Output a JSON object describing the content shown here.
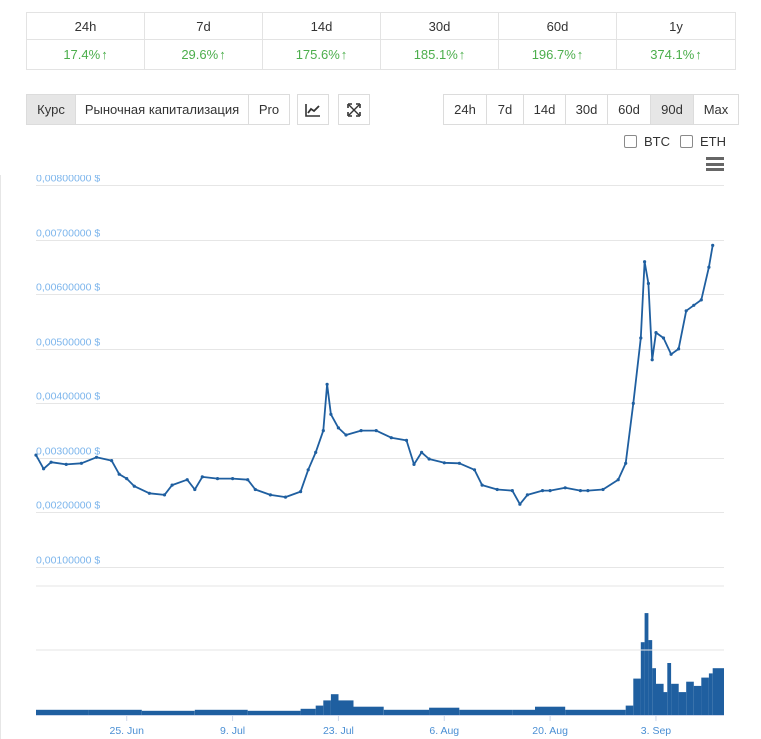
{
  "performance": [
    {
      "period": "24h",
      "change": "17.4%"
    },
    {
      "period": "7d",
      "change": "29.6%"
    },
    {
      "period": "14d",
      "change": "175.6%"
    },
    {
      "period": "30d",
      "change": "185.1%"
    },
    {
      "period": "60d",
      "change": "196.7%"
    },
    {
      "period": "1y",
      "change": "374.1%"
    }
  ],
  "toolbar": {
    "views": [
      "Курс",
      "Рыночная капитализация",
      "Pro"
    ],
    "active_view": "Курс",
    "ranges": [
      "24h",
      "7d",
      "14d",
      "30d",
      "60d",
      "90d",
      "Max"
    ],
    "active_range": "90d",
    "compare": [
      "BTC",
      "ETH"
    ],
    "chart_type_icon": "line-chart-icon",
    "fullscreen_icon": "expand-icon",
    "menu_icon": "hamburger-menu-icon"
  },
  "colors": {
    "price_line": "#1f5fa0",
    "volume": "#1f5fa0",
    "gain": "#4cae4c",
    "axis_text": "#7cb5ec"
  },
  "chart_data": {
    "type": "line",
    "y_tick_labels": [
      "0,00100000 $",
      "0,00200000 $",
      "0,00300000 $",
      "0,00400000 $",
      "0,00500000 $",
      "0,00600000 $",
      "0,00700000 $",
      "0,00800000 $"
    ],
    "y_ticks": [
      0.001,
      0.002,
      0.003,
      0.004,
      0.005,
      0.006,
      0.007,
      0.008
    ],
    "ylim": [
      0.00085,
      0.0081
    ],
    "x_tick_labels": [
      "25. Jun",
      "9. Jul",
      "23. Jul",
      "6. Aug",
      "20. Aug",
      "3. Sep"
    ],
    "x_tick_dates": [
      "2018-06-25",
      "2018-07-09",
      "2018-07-23",
      "2018-08-06",
      "2018-08-20",
      "2018-09-03"
    ],
    "x_range": [
      "2018-06-13",
      "2018-09-12"
    ],
    "grid": true,
    "series": [
      {
        "values": [
          [
            "2018-06-13",
            0.00305
          ],
          [
            "2018-06-14",
            0.0028
          ],
          [
            "2018-06-15",
            0.00292
          ],
          [
            "2018-06-17",
            0.00288
          ],
          [
            "2018-06-19",
            0.0029
          ],
          [
            "2018-06-21",
            0.00301
          ],
          [
            "2018-06-23",
            0.00295
          ],
          [
            "2018-06-24",
            0.0027
          ],
          [
            "2018-06-25",
            0.00262
          ],
          [
            "2018-06-26",
            0.00248
          ],
          [
            "2018-06-28",
            0.00235
          ],
          [
            "2018-06-30",
            0.00232
          ],
          [
            "2018-07-01",
            0.0025
          ],
          [
            "2018-07-03",
            0.0026
          ],
          [
            "2018-07-04",
            0.00242
          ],
          [
            "2018-07-05",
            0.00265
          ],
          [
            "2018-07-07",
            0.00262
          ],
          [
            "2018-07-09",
            0.00262
          ],
          [
            "2018-07-11",
            0.0026
          ],
          [
            "2018-07-12",
            0.00242
          ],
          [
            "2018-07-14",
            0.00232
          ],
          [
            "2018-07-16",
            0.00228
          ],
          [
            "2018-07-18",
            0.00238
          ],
          [
            "2018-07-19",
            0.00278
          ],
          [
            "2018-07-20",
            0.0031
          ],
          [
            "2018-07-21",
            0.0035
          ],
          [
            "2018-07-21T12:00",
            0.00435
          ],
          [
            "2018-07-22",
            0.0038
          ],
          [
            "2018-07-23",
            0.00355
          ],
          [
            "2018-07-24",
            0.00342
          ],
          [
            "2018-07-26",
            0.0035
          ],
          [
            "2018-07-28",
            0.0035
          ],
          [
            "2018-07-30",
            0.00337
          ],
          [
            "2018-08-01",
            0.00332
          ],
          [
            "2018-08-02",
            0.00288
          ],
          [
            "2018-08-03",
            0.0031
          ],
          [
            "2018-08-04",
            0.00298
          ],
          [
            "2018-08-06",
            0.00291
          ],
          [
            "2018-08-08",
            0.0029
          ],
          [
            "2018-08-10",
            0.00278
          ],
          [
            "2018-08-11",
            0.0025
          ],
          [
            "2018-08-13",
            0.00242
          ],
          [
            "2018-08-15",
            0.0024
          ],
          [
            "2018-08-16",
            0.00215
          ],
          [
            "2018-08-17",
            0.00232
          ],
          [
            "2018-08-19",
            0.0024
          ],
          [
            "2018-08-20",
            0.0024
          ],
          [
            "2018-08-22",
            0.00245
          ],
          [
            "2018-08-24",
            0.0024
          ],
          [
            "2018-08-25",
            0.0024
          ],
          [
            "2018-08-27",
            0.00242
          ],
          [
            "2018-08-29",
            0.0026
          ],
          [
            "2018-08-30",
            0.0029
          ],
          [
            "2018-08-31",
            0.004
          ],
          [
            "2018-09-01",
            0.0052
          ],
          [
            "2018-09-01T12:00",
            0.0066
          ],
          [
            "2018-09-02",
            0.0062
          ],
          [
            "2018-09-02T12:00",
            0.0048
          ],
          [
            "2018-09-03",
            0.0053
          ],
          [
            "2018-09-04",
            0.0052
          ],
          [
            "2018-09-05",
            0.0049
          ],
          [
            "2018-09-06",
            0.005
          ],
          [
            "2018-09-07",
            0.0057
          ],
          [
            "2018-09-08",
            0.0058
          ],
          [
            "2018-09-09",
            0.0059
          ],
          [
            "2018-09-10",
            0.0065
          ],
          [
            "2018-09-10T12:00",
            0.0069
          ]
        ]
      }
    ],
    "volume_series": {
      "values": [
        [
          "2018-06-13",
          0.05
        ],
        [
          "2018-06-20",
          0.05
        ],
        [
          "2018-06-27",
          0.04
        ],
        [
          "2018-07-04",
          0.05
        ],
        [
          "2018-07-11",
          0.04
        ],
        [
          "2018-07-18",
          0.06
        ],
        [
          "2018-07-20",
          0.09
        ],
        [
          "2018-07-21",
          0.14
        ],
        [
          "2018-07-22",
          0.2
        ],
        [
          "2018-07-23",
          0.14
        ],
        [
          "2018-07-25",
          0.08
        ],
        [
          "2018-07-29",
          0.05
        ],
        [
          "2018-08-04",
          0.07
        ],
        [
          "2018-08-08",
          0.05
        ],
        [
          "2018-08-15",
          0.05
        ],
        [
          "2018-08-18",
          0.08
        ],
        [
          "2018-08-22",
          0.05
        ],
        [
          "2018-08-27",
          0.05
        ],
        [
          "2018-08-30",
          0.09
        ],
        [
          "2018-08-31",
          0.35
        ],
        [
          "2018-09-01",
          0.7
        ],
        [
          "2018-09-01T12:00",
          0.98
        ],
        [
          "2018-09-02",
          0.72
        ],
        [
          "2018-09-02T12:00",
          0.45
        ],
        [
          "2018-09-03",
          0.3
        ],
        [
          "2018-09-04",
          0.22
        ],
        [
          "2018-09-04T12:00",
          0.5
        ],
        [
          "2018-09-05",
          0.3
        ],
        [
          "2018-09-06",
          0.22
        ],
        [
          "2018-09-07",
          0.32
        ],
        [
          "2018-09-08",
          0.28
        ],
        [
          "2018-09-09",
          0.36
        ],
        [
          "2018-09-10",
          0.4
        ],
        [
          "2018-09-10T12:00",
          0.45
        ]
      ]
    }
  }
}
